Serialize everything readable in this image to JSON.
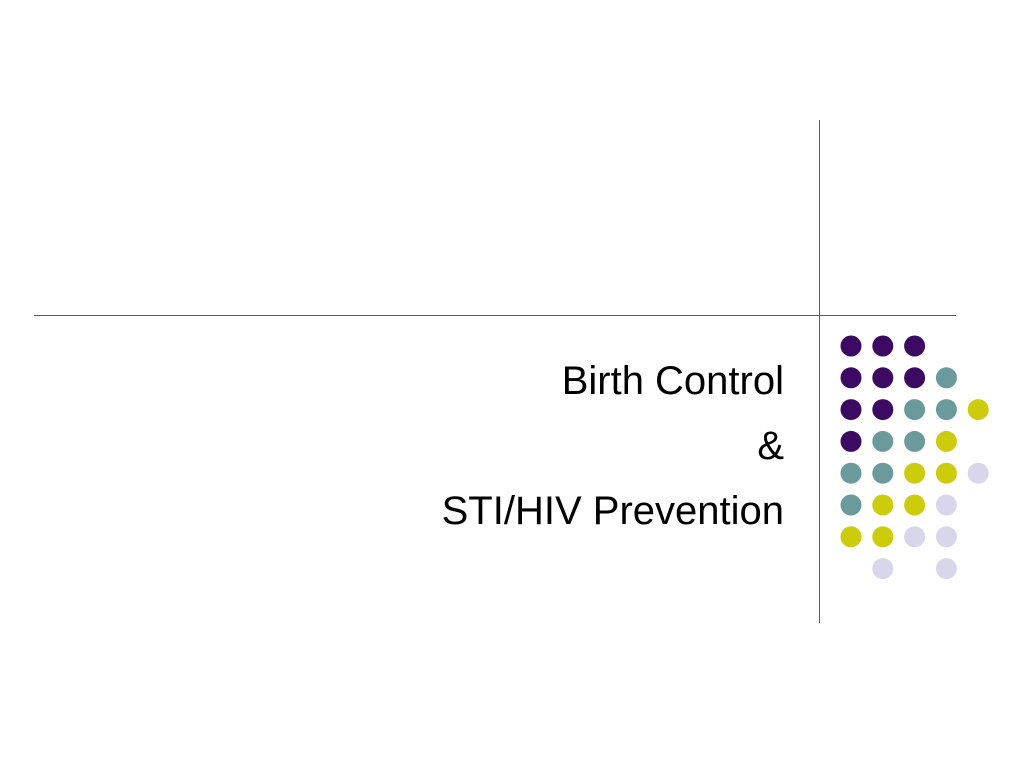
{
  "slide": {
    "title_lines": [
      "Birth Control",
      "&",
      "STI/HIV Prevention"
    ]
  },
  "decoration": {
    "palette": {
      "P": "#3d0a63",
      "T": "#6a9a9c",
      "Y": "#cccc0a",
      "L": "#d7d6ea"
    },
    "dot_grid": [
      "PPP..",
      "PPPT.",
      "PPTTY",
      "PTTY.",
      "TTYYL",
      "TYYL.",
      "YYLL.",
      ".L.L."
    ]
  }
}
